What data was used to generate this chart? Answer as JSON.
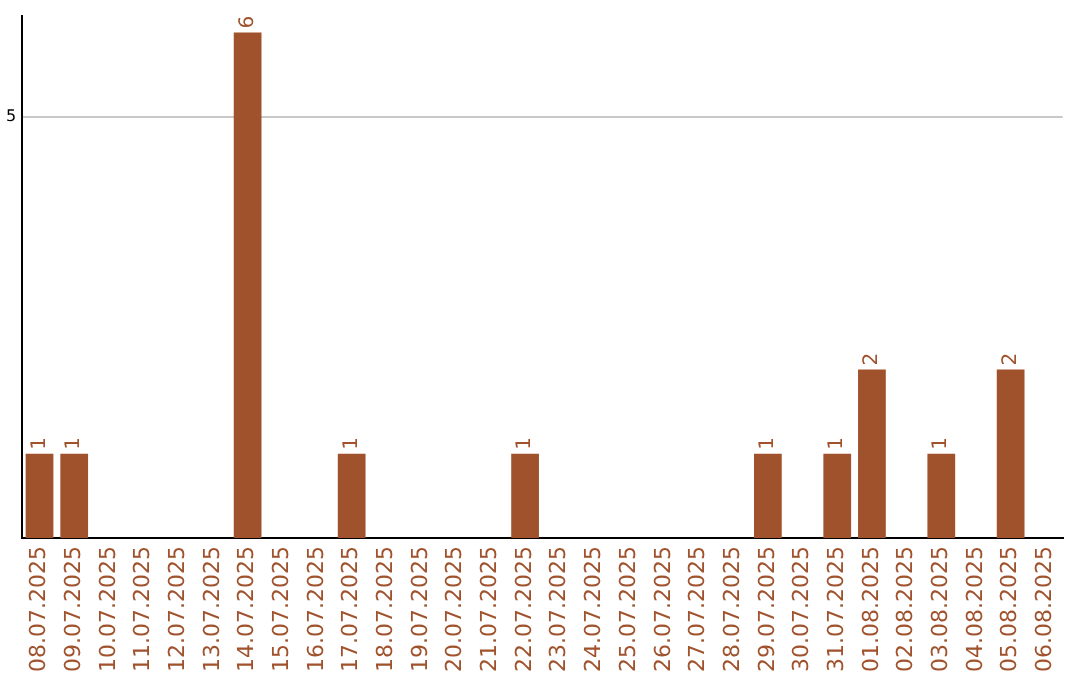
{
  "chart_data": {
    "type": "bar",
    "categories": [
      "08.07.2025",
      "09.07.2025",
      "10.07.2025",
      "11.07.2025",
      "12.07.2025",
      "13.07.2025",
      "14.07.2025",
      "15.07.2025",
      "16.07.2025",
      "17.07.2025",
      "18.07.2025",
      "19.07.2025",
      "20.07.2025",
      "21.07.2025",
      "22.07.2025",
      "23.07.2025",
      "24.07.2025",
      "25.07.2025",
      "26.07.2025",
      "27.07.2025",
      "28.07.2025",
      "29.07.2025",
      "30.07.2025",
      "31.07.2025",
      "01.08.2025",
      "02.08.2025",
      "03.08.2025",
      "04.08.2025",
      "05.08.2025",
      "06.08.2025"
    ],
    "values": [
      1,
      1,
      0,
      0,
      0,
      0,
      6,
      0,
      0,
      1,
      0,
      0,
      0,
      0,
      1,
      0,
      0,
      0,
      0,
      0,
      0,
      1,
      0,
      1,
      2,
      0,
      1,
      0,
      2,
      0
    ],
    "value_labels": [
      "1",
      "1",
      null,
      null,
      null,
      null,
      "6",
      null,
      null,
      "1",
      null,
      null,
      null,
      null,
      "1",
      null,
      null,
      null,
      null,
      null,
      null,
      "1",
      null,
      "1",
      "2",
      null,
      "1",
      null,
      "2",
      null
    ],
    "color": "#a0522d",
    "ylim": [
      0,
      6.2
    ],
    "yticks": [
      5
    ],
    "grid": "y",
    "legend": false
  }
}
